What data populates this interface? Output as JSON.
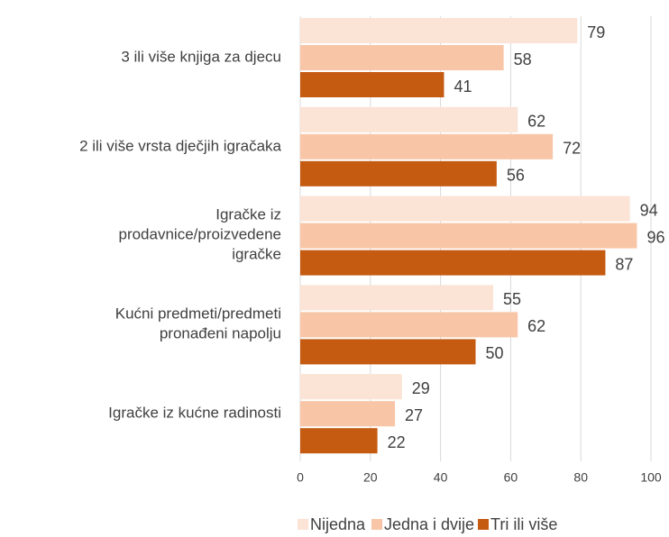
{
  "chart_data": {
    "type": "hbar",
    "categories": [
      "3 ili više knjiga za djecu",
      "2 ili više vrsta dječjih igračaka",
      "Igračke iz\nprodavnice/proizvedene\nigračke",
      "Kućni predmeti/predmeti\npronađeni napolju",
      "Igračke iz kućne radinosti"
    ],
    "series": [
      {
        "name": "Nijedna",
        "color": "#fbe3d5",
        "values": [
          79,
          62,
          94,
          55,
          29
        ]
      },
      {
        "name": "Jedna i dvije",
        "color": "#f8c5a6",
        "values": [
          58,
          72,
          96,
          62,
          27
        ]
      },
      {
        "name": "Tri ili više",
        "color": "#c55a11",
        "values": [
          41,
          56,
          87,
          50,
          22
        ]
      }
    ],
    "xlim": [
      0,
      100
    ],
    "xticks": [
      0,
      20,
      40,
      60,
      80,
      100
    ],
    "grid": true,
    "legend": "bottom"
  }
}
